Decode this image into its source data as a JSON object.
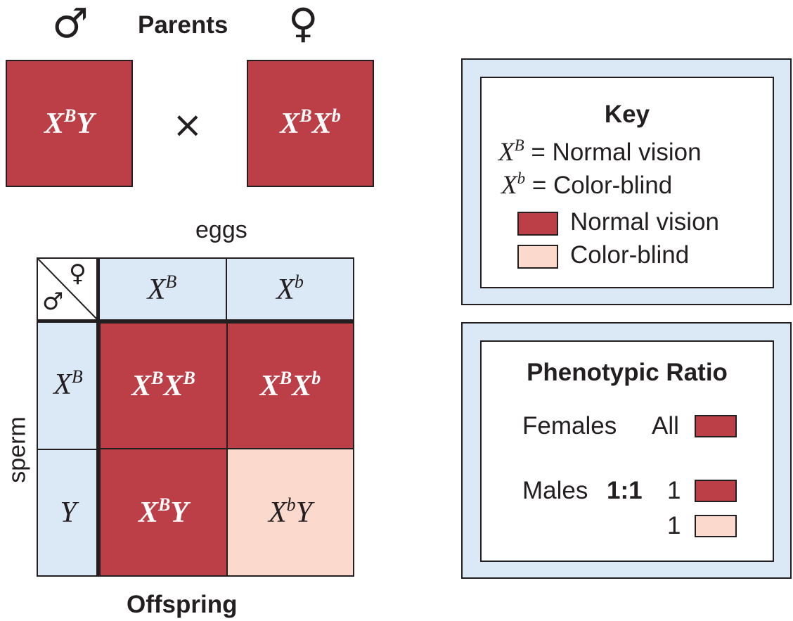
{
  "parents": {
    "title": "Parents",
    "male_symbol": "♂",
    "female_symbol": "♀",
    "male": {
      "X": "X",
      "sup": "B",
      "rest": "Y"
    },
    "cross_symbol": "×",
    "female": {
      "X1": "X",
      "sup1": "B",
      "X2": "X",
      "sup2": "b"
    }
  },
  "square": {
    "eggs_label": "eggs",
    "sperm_label": "sperm",
    "offspring_label": "Offspring",
    "corner_female": "♀",
    "corner_male": "♂",
    "col_headers": [
      {
        "base": "X",
        "sup": "B"
      },
      {
        "base": "X",
        "sup": "b"
      }
    ],
    "row_headers": [
      {
        "base": "X",
        "sup": "B",
        "rest": ""
      },
      {
        "base": "",
        "sup": "",
        "rest": "Y"
      }
    ],
    "cells": [
      {
        "a": "X",
        "asup": "B",
        "b": "X",
        "bsup": "B",
        "phenotype": "normal"
      },
      {
        "a": "X",
        "asup": "B",
        "b": "X",
        "bsup": "b",
        "phenotype": "normal"
      },
      {
        "a": "X",
        "asup": "B",
        "b": "Y",
        "bsup": "",
        "phenotype": "normal"
      },
      {
        "a": "X",
        "asup": "b",
        "b": "Y",
        "bsup": "",
        "phenotype": "color-blind"
      }
    ]
  },
  "key": {
    "title": "Key",
    "allele_rows": [
      {
        "base": "X",
        "sup": "B",
        "eq": "=",
        "text": "Normal vision"
      },
      {
        "base": "X",
        "sup": "b",
        "eq": "=",
        "text": "Color-blind"
      }
    ],
    "color_rows": [
      {
        "text": "Normal vision",
        "color": "#bc3e47"
      },
      {
        "text": "Color-blind",
        "color": "#fbd9cd"
      }
    ]
  },
  "ratio": {
    "title": "Phenotypic Ratio",
    "females_label": "Females",
    "females_value": "All",
    "males_label": "Males",
    "males_ratio": "1:1",
    "males_normal_count": "1",
    "males_colorblind_count": "1"
  },
  "colors": {
    "normal": "#bc3e47",
    "color_blind": "#fbd9cd",
    "header_blue": "#dbe8f5",
    "outline": "#231f20"
  }
}
